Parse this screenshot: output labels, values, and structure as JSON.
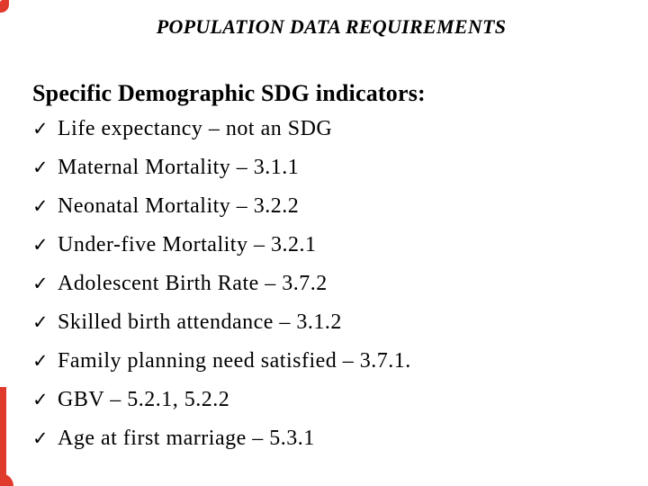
{
  "slide": {
    "title": "POPULATION DATA REQUIREMENTS",
    "heading": "Specific Demographic SDG indicators:",
    "bullet_glyph": "✓",
    "items": [
      "Life expectancy – not an SDG",
      "Maternal Mortality – 3.1.1",
      "Neonatal Mortality – 3.2.2",
      "Under-five Mortality – 3.2.1",
      "Adolescent Birth Rate – 3.7.2",
      "Skilled birth attendance – 3.1.2",
      "Family planning need satisfied – 3.7.1.",
      "GBV – 5.2.1, 5.2.2",
      "Age at first marriage – 5.3.1"
    ],
    "colors": {
      "background": "#ffffff",
      "text": "#000000",
      "border_red": "#e03a2c"
    }
  }
}
